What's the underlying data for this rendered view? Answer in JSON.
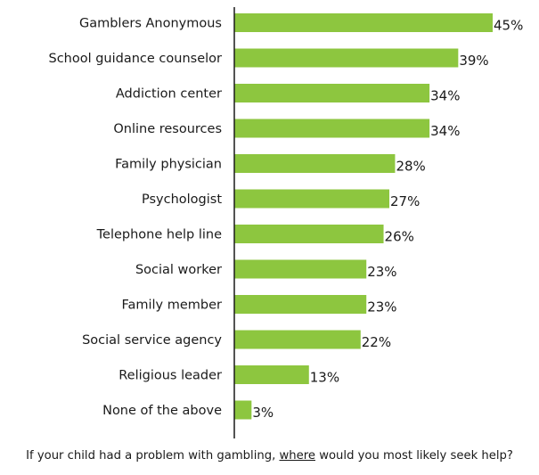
{
  "chart_data": {
    "type": "bar",
    "orientation": "horizontal",
    "categories": [
      "Gamblers Anonymous",
      "School guidance counselor",
      "Addiction center",
      "Online resources",
      "Family physician",
      "Psychologist",
      "Telephone help line",
      "Social worker",
      "Family member",
      "Social service agency",
      "Religious leader",
      "None of the above"
    ],
    "values": [
      45,
      39,
      34,
      34,
      28,
      27,
      26,
      23,
      23,
      22,
      13,
      3
    ],
    "value_labels": [
      "45%",
      "39%",
      "34%",
      "34%",
      "28%",
      "27%",
      "26%",
      "23%",
      "23%",
      "22%",
      "13%",
      "3%"
    ],
    "unit": "%",
    "xlim": [
      0,
      45
    ],
    "grid": false,
    "bar_color": "#8dc63f",
    "axis_color": "#1a1a1a"
  },
  "caption": {
    "before": "If your child had a problem with gambling, ",
    "emphasis": "where",
    "after": " would you most likely seek help?"
  }
}
